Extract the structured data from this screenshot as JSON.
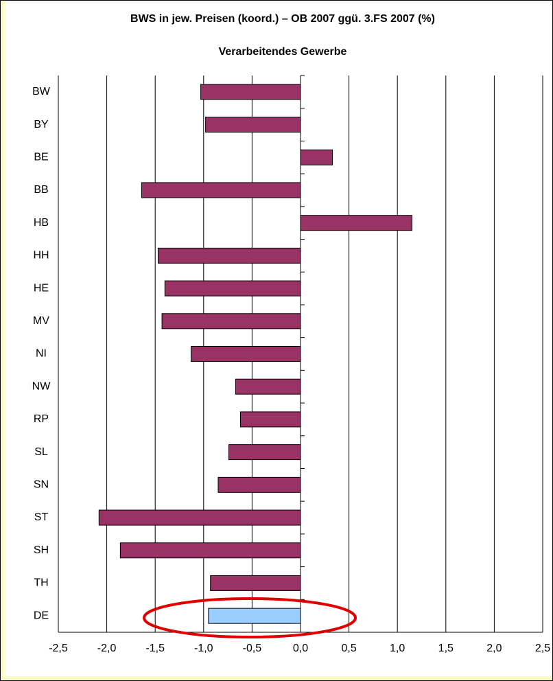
{
  "chart_data": {
    "type": "barh",
    "title": "BWS in jew. Preisen (koord.) – OB 2007 ggü. 3.FS 2007 (%)",
    "subtitle": "Verarbeitendes Gewerbe",
    "categories": [
      "BW",
      "BY",
      "BE",
      "BB",
      "HB",
      "HH",
      "HE",
      "MV",
      "NI",
      "NW",
      "RP",
      "SL",
      "SN",
      "ST",
      "SH",
      "TH",
      "DE"
    ],
    "values": [
      -1.03,
      -0.98,
      0.33,
      -1.64,
      1.15,
      -1.47,
      -1.4,
      -1.43,
      -1.13,
      -0.67,
      -0.62,
      -0.74,
      -0.85,
      -2.08,
      -1.86,
      -0.93,
      -0.95
    ],
    "colors": [
      "#993366",
      "#993366",
      "#993366",
      "#993366",
      "#993366",
      "#993366",
      "#993366",
      "#993366",
      "#993366",
      "#993366",
      "#993366",
      "#993366",
      "#993366",
      "#993366",
      "#993366",
      "#993366",
      "#99ccff"
    ],
    "xlim": [
      -2.5,
      2.5
    ],
    "xticks": [
      {
        "value": -2.5,
        "label": "-2,5"
      },
      {
        "value": -2,
        "label": "-2,0"
      },
      {
        "value": -1.5,
        "label": "-1,5"
      },
      {
        "value": -1,
        "label": "-1,0"
      },
      {
        "value": -0.5,
        "label": "-0,5"
      },
      {
        "value": 0,
        "label": "0,0"
      },
      {
        "value": 0.5,
        "label": "0,5"
      },
      {
        "value": 1,
        "label": "1,0"
      },
      {
        "value": 1.5,
        "label": "1,5"
      },
      {
        "value": 2,
        "label": "2,0"
      },
      {
        "value": 2.5,
        "label": "2,5"
      }
    ],
    "grid": true
  }
}
